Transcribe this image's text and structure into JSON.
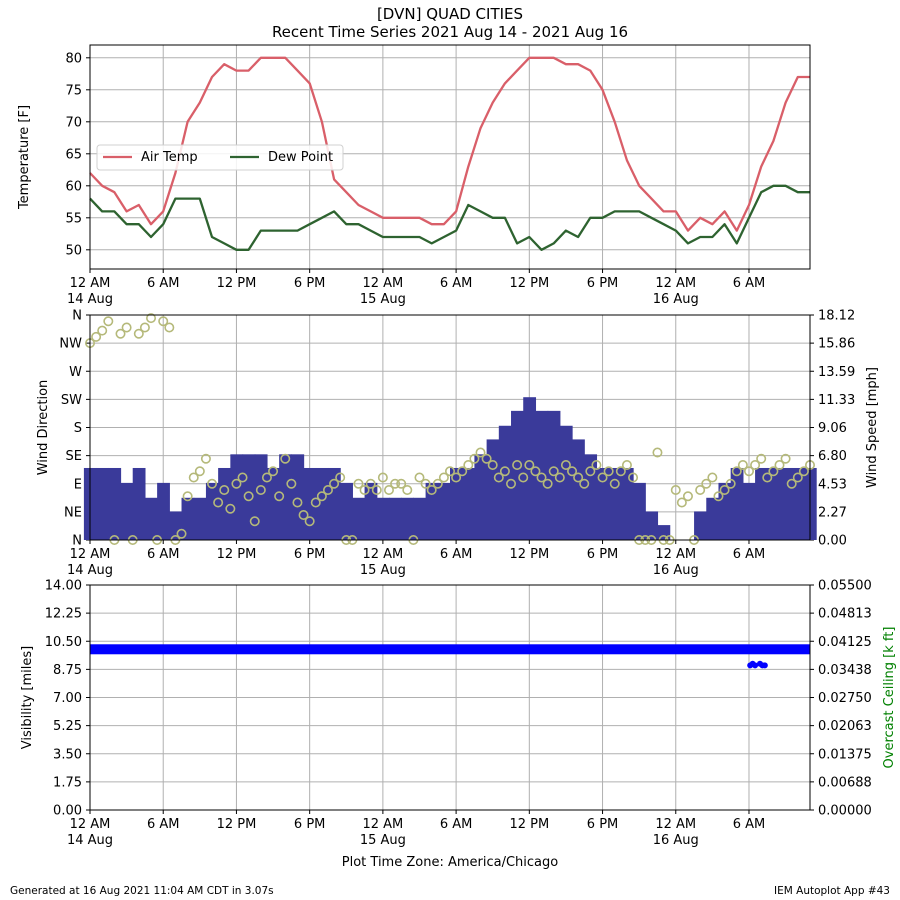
{
  "title": {
    "line1": "[DVN] QUAD CITIES",
    "line2": "Recent Time Series 2021 Aug 14 - 2021 Aug 16"
  },
  "footer": {
    "left": "Generated at 16 Aug 2021 11:04 AM CDT in 3.07s",
    "right": "IEM Autoplot App #43"
  },
  "x_axis": {
    "tick_labels": [
      "12 AM",
      "6 AM",
      "12 PM",
      "6 PM",
      "12 AM",
      "6 AM",
      "12 PM",
      "6 PM",
      "12 AM",
      "6 AM"
    ],
    "date_labels": [
      {
        "hour": 0,
        "label": "14 Aug"
      },
      {
        "hour": 24,
        "label": "15 Aug"
      },
      {
        "hour": 48,
        "label": "16 Aug"
      }
    ],
    "xlabel": "Plot Time Zone: America/Chicago"
  },
  "colors": {
    "air_temp": "#d95f69",
    "dew_point": "#2e6330",
    "wind_speed": "#3a3a9a",
    "wind_dir": "#b5b97a",
    "visibility": "#0000ff",
    "ceiling_label": "#008000",
    "grid": "#b0b0b0"
  },
  "chart_data": [
    {
      "type": "line",
      "panel": "temperature",
      "ylabel": "Temperature [F]",
      "ylim": [
        47,
        82
      ],
      "yticks": [
        "50",
        "55",
        "60",
        "65",
        "70",
        "75",
        "80"
      ],
      "xlim_hours": [
        0,
        59
      ],
      "grid": true,
      "legend_placement": "center-left",
      "series": [
        {
          "name": "Air Temp",
          "x_hours": [
            0,
            1,
            2,
            3,
            4,
            5,
            6,
            7,
            8,
            9,
            10,
            11,
            12,
            13,
            14,
            15,
            16,
            17,
            18,
            19,
            20,
            21,
            22,
            23,
            24,
            25,
            26,
            27,
            28,
            29,
            30,
            31,
            32,
            33,
            34,
            35,
            36,
            37,
            38,
            39,
            40,
            41,
            42,
            43,
            44,
            45,
            46,
            47,
            48,
            49,
            50,
            51,
            52,
            53,
            54,
            55,
            56,
            57,
            58,
            59
          ],
          "values": [
            62,
            60,
            59,
            56,
            57,
            54,
            56,
            62,
            70,
            73,
            77,
            79,
            78,
            78,
            80,
            80,
            80,
            78,
            76,
            70,
            61,
            59,
            57,
            56,
            55,
            55,
            55,
            55,
            54,
            54,
            56,
            63,
            69,
            73,
            76,
            78,
            80,
            80,
            80,
            79,
            79,
            78,
            75,
            70,
            64,
            60,
            58,
            56,
            56,
            53,
            55,
            54,
            56,
            53,
            57,
            63,
            67,
            73,
            77,
            77
          ]
        },
        {
          "name": "Dew Point",
          "x_hours": [
            0,
            1,
            2,
            3,
            4,
            5,
            6,
            7,
            8,
            9,
            10,
            11,
            12,
            13,
            14,
            15,
            16,
            17,
            18,
            19,
            20,
            21,
            22,
            23,
            24,
            25,
            26,
            27,
            28,
            29,
            30,
            31,
            32,
            33,
            34,
            35,
            36,
            37,
            38,
            39,
            40,
            41,
            42,
            43,
            44,
            45,
            46,
            47,
            48,
            49,
            50,
            51,
            52,
            53,
            54,
            55,
            56,
            57,
            58,
            59
          ],
          "values": [
            58,
            56,
            56,
            54,
            54,
            52,
            54,
            58,
            58,
            58,
            52,
            51,
            50,
            50,
            53,
            53,
            53,
            53,
            54,
            55,
            56,
            54,
            54,
            53,
            52,
            52,
            52,
            52,
            51,
            52,
            53,
            57,
            56,
            55,
            55,
            51,
            52,
            50,
            51,
            53,
            52,
            55,
            55,
            56,
            56,
            56,
            55,
            54,
            53,
            51,
            52,
            52,
            54,
            51,
            55,
            59,
            60,
            60,
            59,
            59
          ]
        }
      ]
    },
    {
      "type": "bar",
      "panel": "wind",
      "ylabel": "Wind Direction",
      "y2label": "Wind Speed [mph]",
      "yticks": [
        "N",
        "NE",
        "E",
        "SE",
        "S",
        "SW",
        "W",
        "NW",
        "N"
      ],
      "y2ticks": [
        "0.00",
        "2.27",
        "4.53",
        "6.80",
        "9.06",
        "11.33",
        "13.59",
        "15.86",
        "18.12"
      ],
      "ylim_deg": [
        0,
        360
      ],
      "y2lim": [
        0,
        18.12
      ],
      "grid": true,
      "series": [
        {
          "name": "Wind Speed",
          "style": "bars",
          "x_hours": [
            0,
            1,
            2,
            3,
            4,
            5,
            6,
            7,
            8,
            9,
            10,
            11,
            12,
            13,
            14,
            15,
            16,
            17,
            18,
            19,
            20,
            21,
            22,
            23,
            24,
            25,
            26,
            27,
            28,
            29,
            30,
            31,
            32,
            33,
            34,
            35,
            36,
            37,
            38,
            39,
            40,
            41,
            42,
            43,
            44,
            45,
            46,
            47,
            48,
            49,
            50,
            51,
            52,
            53,
            54,
            55,
            56,
            57,
            58,
            59
          ],
          "values": [
            5.8,
            5.8,
            5.8,
            4.6,
            5.8,
            3.4,
            4.6,
            2.3,
            3.4,
            3.4,
            4.6,
            5.8,
            6.9,
            6.9,
            6.9,
            5.8,
            6.9,
            6.9,
            5.8,
            5.8,
            5.8,
            4.6,
            3.4,
            4.6,
            3.4,
            3.4,
            3.4,
            3.4,
            4.6,
            4.6,
            5.8,
            5.8,
            6.9,
            8.1,
            9.2,
            10.4,
            11.5,
            10.4,
            10.4,
            9.2,
            8.1,
            6.9,
            5.8,
            5.8,
            5.8,
            4.6,
            2.3,
            1.2,
            0.0,
            0.0,
            2.3,
            3.4,
            4.6,
            5.8,
            4.6,
            5.8,
            5.8,
            5.8,
            5.8,
            5.8
          ]
        },
        {
          "name": "Wind Direction",
          "style": "markers",
          "x_hours": [
            0,
            0.5,
            1,
            1.5,
            2,
            2.5,
            3,
            3.5,
            4,
            4.5,
            5,
            5.5,
            6,
            6.5,
            7,
            7.5,
            8,
            8.5,
            9,
            9.5,
            10,
            10.5,
            11,
            11.5,
            12,
            12.5,
            13,
            13.5,
            14,
            14.5,
            15,
            15.5,
            16,
            16.5,
            17,
            17.5,
            18,
            18.5,
            19,
            19.5,
            20,
            20.5,
            21,
            21.5,
            22,
            22.5,
            23,
            23.5,
            24,
            24.5,
            25,
            25.5,
            26,
            26.5,
            27,
            27.5,
            28,
            28.5,
            29,
            29.5,
            30,
            30.5,
            31,
            31.5,
            32,
            32.5,
            33,
            33.5,
            34,
            34.5,
            35,
            35.5,
            36,
            36.5,
            37,
            37.5,
            38,
            38.5,
            39,
            39.5,
            40,
            40.5,
            41,
            41.5,
            42,
            42.5,
            43,
            43.5,
            44,
            44.5,
            45,
            45.5,
            46,
            46.5,
            47,
            47.5,
            48,
            48.5,
            49,
            49.5,
            50,
            50.5,
            51,
            51.5,
            52,
            52.5,
            53,
            53.5,
            54,
            54.5,
            55,
            55.5,
            56,
            56.5,
            57,
            57.5,
            58,
            58.5,
            59
          ],
          "values": [
            315,
            325,
            335,
            350,
            0,
            330,
            340,
            0,
            330,
            340,
            355,
            0,
            350,
            340,
            0,
            10,
            70,
            100,
            110,
            130,
            90,
            60,
            80,
            50,
            90,
            100,
            70,
            30,
            80,
            100,
            110,
            70,
            130,
            90,
            60,
            40,
            30,
            60,
            70,
            80,
            90,
            100,
            0,
            0,
            90,
            80,
            90,
            80,
            100,
            80,
            90,
            90,
            80,
            0,
            100,
            90,
            80,
            90,
            100,
            110,
            100,
            110,
            120,
            130,
            140,
            130,
            120,
            100,
            110,
            90,
            120,
            100,
            120,
            110,
            100,
            90,
            110,
            100,
            120,
            110,
            100,
            90,
            110,
            120,
            100,
            110,
            90,
            110,
            120,
            100,
            0,
            0,
            0,
            140,
            0,
            0,
            80,
            60,
            70,
            0,
            80,
            90,
            100,
            70,
            80,
            90,
            110,
            120,
            110,
            120,
            130,
            100,
            110,
            120,
            130,
            90,
            100,
            110,
            120
          ]
        }
      ]
    },
    {
      "type": "scatter",
      "panel": "visibility",
      "ylabel": "Visibility [miles]",
      "y2label": "Overcast Ceiling [k ft]",
      "yticks": [
        "0.00",
        "1.75",
        "3.50",
        "5.25",
        "7.00",
        "8.75",
        "10.50",
        "12.25",
        "14.00"
      ],
      "y2ticks": [
        "0.00000",
        "0.00688",
        "0.01375",
        "0.02063",
        "0.02750",
        "0.03438",
        "0.04125",
        "0.04813",
        "0.05500"
      ],
      "ylim": [
        0,
        14
      ],
      "y2lim": [
        0,
        0.055
      ],
      "grid": true,
      "series": [
        {
          "name": "Visibility",
          "x_hours": [
            0,
            59
          ],
          "values": [
            10,
            10
          ]
        },
        {
          "name": "Visibility (low)",
          "x_hours": [
            54.1,
            54.3,
            54.5,
            54.7,
            54.9,
            55.1,
            55.3
          ],
          "values": [
            9,
            9.1,
            9,
            10.1,
            9.1,
            9,
            9
          ]
        }
      ]
    }
  ]
}
